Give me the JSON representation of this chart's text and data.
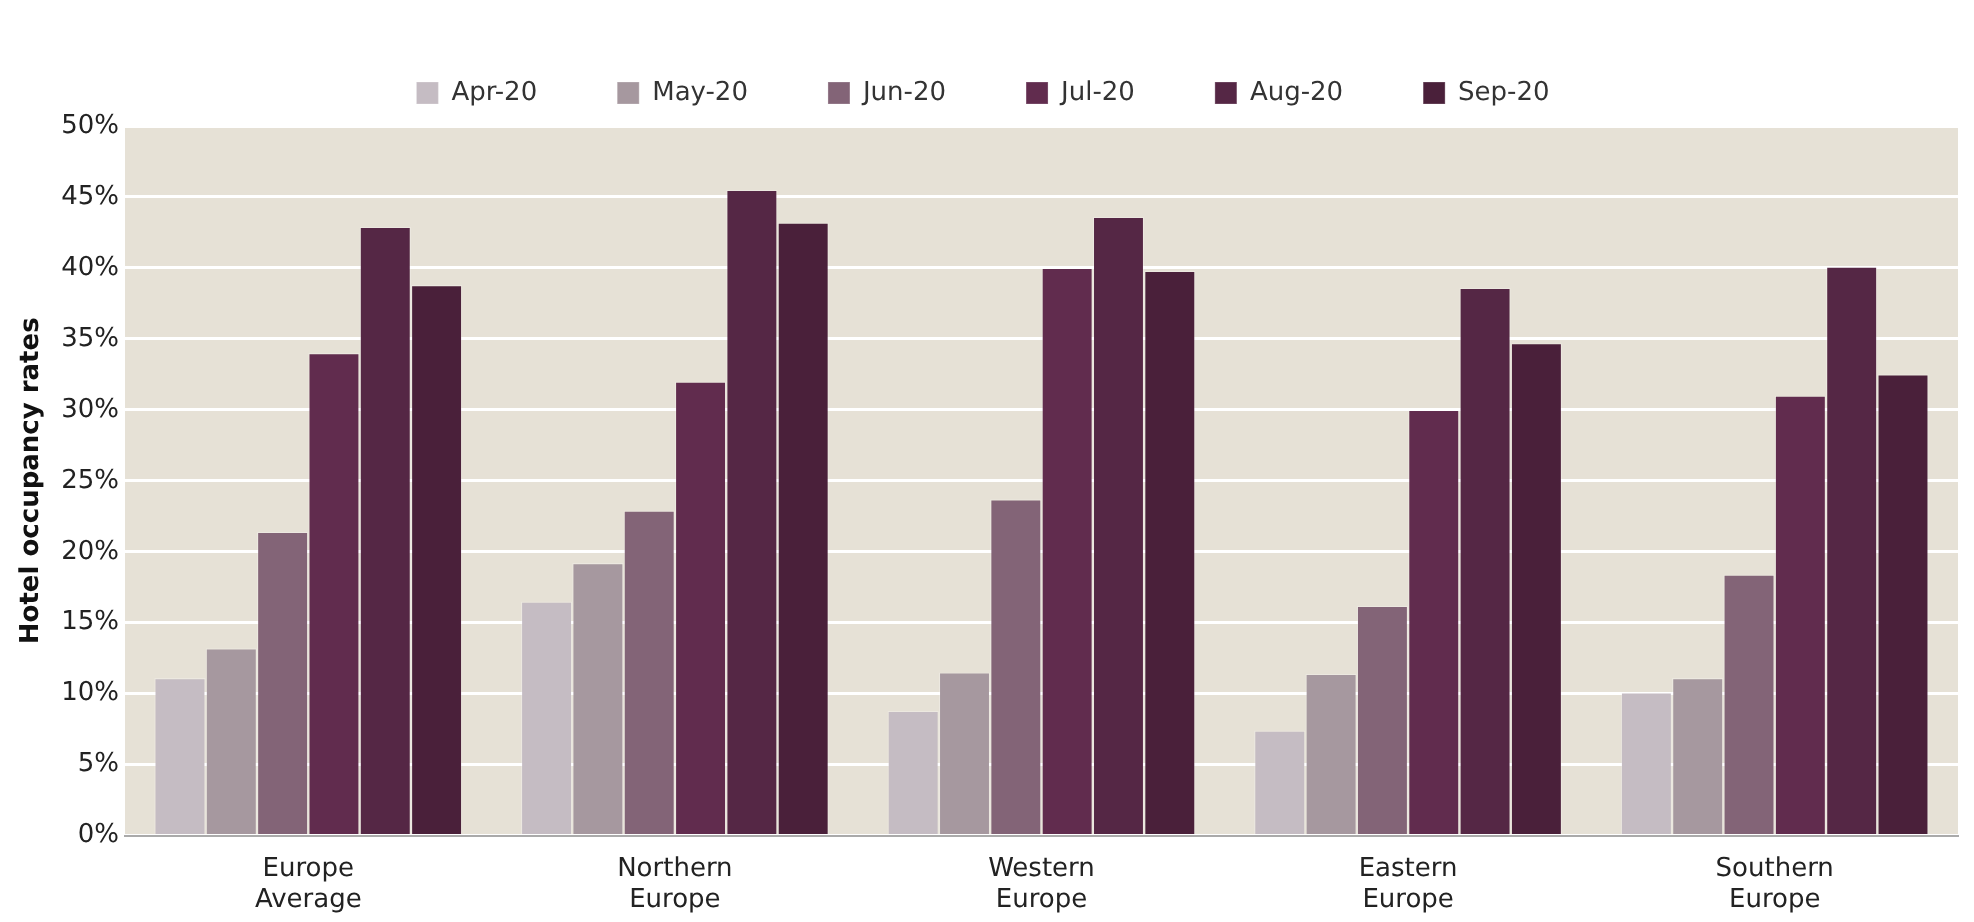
{
  "chart_data": {
    "type": "bar",
    "ylabel": "Hotel occupancy rates",
    "categories": [
      "Europe Average",
      "Northern Europe",
      "Western Europe",
      "Eastern Europe",
      "Southern Europe"
    ],
    "series": [
      {
        "name": "Apr-20",
        "color": "#c5bcc3",
        "values": [
          11.1,
          16.5,
          8.8,
          7.4,
          10.1
        ]
      },
      {
        "name": "May-20",
        "color": "#a6989f",
        "values": [
          13.2,
          19.2,
          11.5,
          11.4,
          11.1
        ]
      },
      {
        "name": "Jun-20",
        "color": "#836477",
        "values": [
          21.4,
          22.9,
          23.7,
          16.2,
          18.4
        ]
      },
      {
        "name": "Jul-20",
        "color": "#612c4e",
        "values": [
          34,
          32,
          40,
          30,
          31
        ]
      },
      {
        "name": "Aug-20",
        "color": "#552745",
        "values": [
          42.9,
          45.5,
          43.6,
          38.6,
          40.1
        ]
      },
      {
        "name": "Sep-20",
        "color": "#4a203a",
        "values": [
          38.8,
          43.2,
          39.8,
          34.7,
          32.5
        ]
      }
    ],
    "ylim": [
      0,
      50
    ],
    "yticks": [
      {
        "value": 0,
        "label": "0%"
      },
      {
        "value": 5,
        "label": "5%"
      },
      {
        "value": 10,
        "label": "10%"
      },
      {
        "value": 15,
        "label": "15%"
      },
      {
        "value": 20,
        "label": "20%"
      },
      {
        "value": 25,
        "label": "25%"
      },
      {
        "value": 30,
        "label": "30%"
      },
      {
        "value": 35,
        "label": "35%"
      },
      {
        "value": 40,
        "label": "40%"
      },
      {
        "value": 45,
        "label": "45%"
      },
      {
        "value": 50,
        "label": "50%"
      }
    ],
    "grid": "y",
    "legend": "top"
  }
}
